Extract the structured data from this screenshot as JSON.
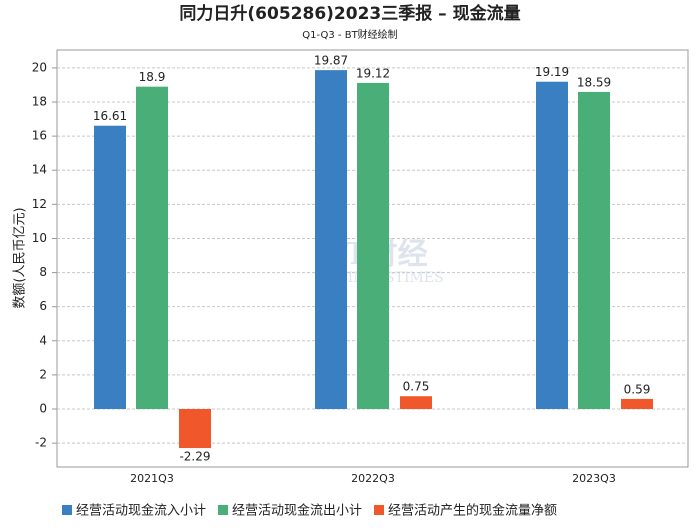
{
  "chart_data": {
    "type": "bar",
    "title": "同力日升(605286)2023三季报 – 现金流量",
    "subtitle": "Q1-Q3 - BT财经绘制",
    "y_label": "数额(人民币亿元)",
    "watermark": [
      "BT财经",
      "BUSINESSTIMES"
    ],
    "categories": [
      "2021Q3",
      "2022Q3",
      "2023Q3"
    ],
    "series": [
      {
        "name": "经营活动现金流入小计",
        "color": "#3a7fc1",
        "values": [
          16.61,
          19.87,
          19.19
        ]
      },
      {
        "name": "经营活动现金流出小计",
        "color": "#4aae78",
        "values": [
          18.9,
          19.12,
          18.59
        ]
      },
      {
        "name": "经营活动产生的现金流量净额",
        "color": "#f0572a",
        "values": [
          -2.29,
          0.75,
          0.59
        ]
      }
    ],
    "ylim": [
      -3.4,
      21.05
    ],
    "yticks": [
      -2,
      0,
      2,
      4,
      6,
      8,
      10,
      12,
      14,
      16,
      18,
      20
    ],
    "grid": true
  }
}
